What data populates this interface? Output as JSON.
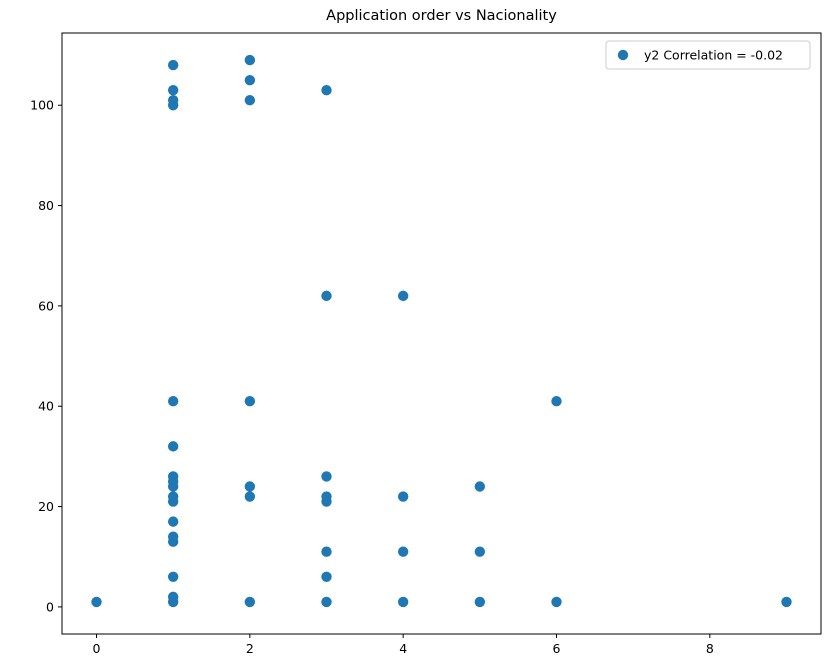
{
  "chart_data": {
    "type": "scatter",
    "title": "Application order vs Nacionality",
    "xlabel": "",
    "ylabel": "",
    "xlim": [
      -0.45,
      9.45
    ],
    "ylim": [
      -5.4,
      114.4
    ],
    "xticks": [
      0,
      2,
      4,
      6,
      8
    ],
    "yticks": [
      0,
      20,
      40,
      60,
      80,
      100
    ],
    "grid": false,
    "legend_position": "top-right",
    "series": [
      {
        "name": "y2 Correlation = -0.02",
        "color": "#1f77b4",
        "points": [
          [
            0,
            1
          ],
          [
            1,
            1
          ],
          [
            1,
            2
          ],
          [
            1,
            6
          ],
          [
            1,
            13
          ],
          [
            1,
            14
          ],
          [
            1,
            17
          ],
          [
            1,
            21
          ],
          [
            1,
            22
          ],
          [
            1,
            24
          ],
          [
            1,
            25
          ],
          [
            1,
            26
          ],
          [
            1,
            32
          ],
          [
            1,
            41
          ],
          [
            1,
            100
          ],
          [
            1,
            101
          ],
          [
            1,
            103
          ],
          [
            1,
            108
          ],
          [
            2,
            1
          ],
          [
            2,
            22
          ],
          [
            2,
            24
          ],
          [
            2,
            41
          ],
          [
            2,
            101
          ],
          [
            2,
            105
          ],
          [
            2,
            109
          ],
          [
            3,
            1
          ],
          [
            3,
            6
          ],
          [
            3,
            11
          ],
          [
            3,
            21
          ],
          [
            3,
            22
          ],
          [
            3,
            26
          ],
          [
            3,
            62
          ],
          [
            3,
            103
          ],
          [
            4,
            1
          ],
          [
            4,
            11
          ],
          [
            4,
            22
          ],
          [
            4,
            62
          ],
          [
            5,
            1
          ],
          [
            5,
            11
          ],
          [
            5,
            24
          ],
          [
            6,
            1
          ],
          [
            6,
            41
          ],
          [
            9,
            1
          ]
        ]
      }
    ]
  }
}
